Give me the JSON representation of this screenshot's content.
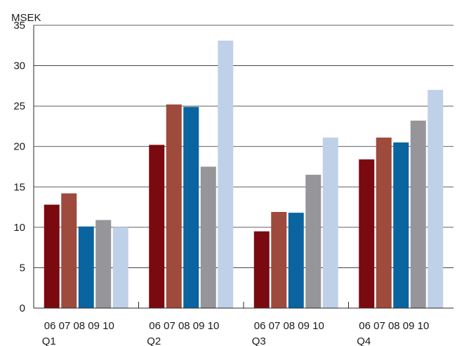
{
  "chart_data": {
    "type": "bar",
    "ylabel": "MSEK",
    "ylim": [
      0,
      35
    ],
    "yticks": [
      0,
      5,
      10,
      15,
      20,
      25,
      30,
      35
    ],
    "grid": true,
    "groups": [
      {
        "label": "Q1",
        "year_labels": [
          "06",
          "07",
          "08",
          "09",
          "10"
        ],
        "values": [
          12.8,
          14.2,
          10.1,
          10.9,
          10.0
        ]
      },
      {
        "label": "Q2",
        "year_labels": [
          "06",
          "07",
          "08",
          "09",
          "10"
        ],
        "values": [
          20.2,
          25.2,
          24.9,
          17.5,
          33.1
        ]
      },
      {
        "label": "Q3",
        "year_labels": [
          "06",
          "07",
          "08",
          "09",
          "10"
        ],
        "values": [
          9.5,
          11.9,
          11.8,
          16.5,
          21.1
        ]
      },
      {
        "label": "Q4",
        "year_labels": [
          "06",
          "07",
          "08",
          "09",
          "10"
        ],
        "values": [
          18.4,
          21.1,
          20.5,
          23.2,
          27.0
        ]
      }
    ],
    "bar_colors": [
      "#7a0a10",
      "#9e4a3c",
      "#0a64a0",
      "#96969a",
      "#bfd1e8"
    ]
  }
}
